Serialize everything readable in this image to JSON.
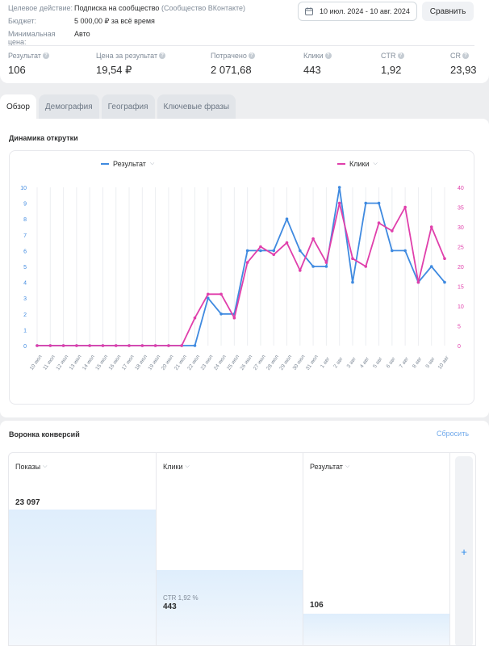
{
  "summary": {
    "action_label": "Целевое действие:",
    "action_value": "Подписка на сообщество",
    "action_note": "(Сообщество ВКонтакте)",
    "budget_label": "Бюджет:",
    "budget_value": "5 000,00 ₽ за всё время",
    "min_price_label": "Минимальная цена:",
    "min_price_value": "Авто",
    "date_range": "10 июл. 2024 - 10 авг. 2024",
    "compare_label": "Сравнить",
    "metrics": [
      {
        "label": "Результат",
        "value": "106"
      },
      {
        "label": "Цена за результат",
        "value": "19,54 ₽"
      },
      {
        "label": "Потрачено",
        "value": "2 071,68"
      },
      {
        "label": "Клики",
        "value": "443"
      },
      {
        "label": "CTR",
        "value": "1,92"
      },
      {
        "label": "CR",
        "value": "23,93"
      }
    ]
  },
  "tabs": [
    {
      "label": "Обзор",
      "active": true
    },
    {
      "label": "Демография",
      "active": false
    },
    {
      "label": "География",
      "active": false
    },
    {
      "label": "Ключевые фразы",
      "active": false
    }
  ],
  "chart_section_title": "Динамика открутки",
  "chart_data": {
    "type": "line",
    "x": [
      "10 июл",
      "11 июл",
      "12 июл",
      "13 июл",
      "14 июл",
      "15 июл",
      "16 июл",
      "17 июл",
      "18 июл",
      "19 июл",
      "20 июл",
      "21 июл",
      "22 июл",
      "23 июл",
      "24 июл",
      "25 июл",
      "26 июл",
      "27 июл",
      "28 июл",
      "29 июл",
      "30 июл",
      "31 июл",
      "1 авг",
      "2 авг",
      "3 авг",
      "4 авг",
      "5 авг",
      "6 авг",
      "7 авг",
      "8 авг",
      "9 авг",
      "10 авг"
    ],
    "series": [
      {
        "name": "Результат",
        "color": "#3f8ae0",
        "axis": "left",
        "values": [
          0,
          0,
          0,
          0,
          0,
          0,
          0,
          0,
          0,
          0,
          0,
          0,
          0,
          3,
          2,
          2,
          6,
          6,
          6,
          8,
          6,
          5,
          5,
          10,
          4,
          9,
          9,
          6,
          6,
          4,
          5,
          4
        ]
      },
      {
        "name": "Клики",
        "color": "#e03fab",
        "axis": "right",
        "values": [
          0,
          0,
          0,
          0,
          0,
          0,
          0,
          0,
          0,
          0,
          0,
          0,
          7,
          13,
          13,
          7,
          21,
          25,
          23,
          26,
          19,
          27,
          21,
          36,
          22,
          20,
          31,
          29,
          35,
          16,
          30,
          22
        ]
      }
    ],
    "y_left_ticks": [
      0,
      1,
      2,
      3,
      4,
      5,
      6,
      7,
      8,
      9,
      10
    ],
    "y_right_ticks": [
      0,
      5,
      10,
      15,
      20,
      25,
      30,
      35,
      40
    ],
    "ylim_left": [
      0,
      10
    ],
    "ylim_right": [
      0,
      40
    ],
    "grid": "vertical"
  },
  "funnel": {
    "title": "Воронка конверсий",
    "reset_label": "Сбросить",
    "columns": [
      {
        "label": "Показы",
        "value": "23 097",
        "sub": "",
        "level": 1.0
      },
      {
        "label": "Клики",
        "value": "443",
        "sub": "CTR 1,92 %",
        "level": 0.56
      },
      {
        "label": "Результат",
        "value": "106",
        "sub": "",
        "level": 0.24
      }
    ],
    "add_label": "+"
  }
}
